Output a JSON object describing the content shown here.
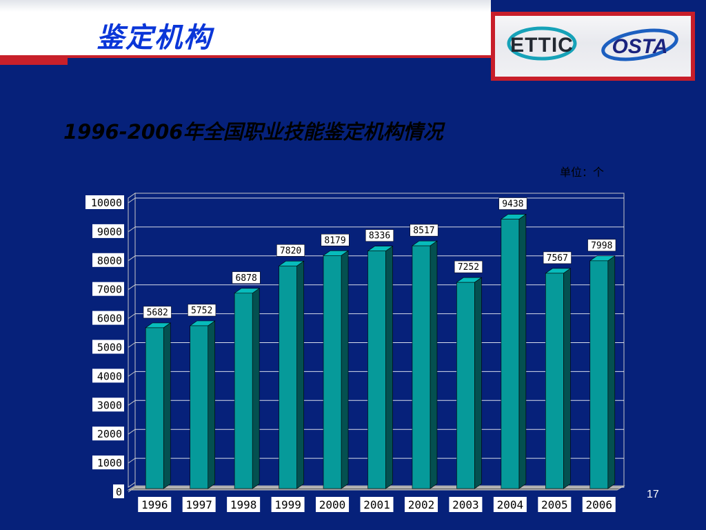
{
  "slide": {
    "title": "鉴定机构",
    "page_number": "17"
  },
  "logos": {
    "left": "ETTIC",
    "right": "OSTA"
  },
  "chart_data": {
    "type": "bar",
    "title": "1996-2006年全国职业技能鉴定机构情况",
    "unit_label": "单位：个",
    "categories": [
      "1996",
      "1997",
      "1998",
      "1999",
      "2000",
      "2001",
      "2002",
      "2003",
      "2004",
      "2005",
      "2006"
    ],
    "values": [
      5682,
      5752,
      6878,
      7820,
      8179,
      8336,
      8517,
      7252,
      9438,
      7567,
      7998
    ],
    "ylim": [
      0,
      10000
    ],
    "yticks": [
      0,
      1000,
      2000,
      3000,
      4000,
      5000,
      6000,
      7000,
      8000,
      9000,
      10000
    ],
    "grid": true,
    "legend": "none",
    "colors": {
      "bar_front": "#069a9a",
      "bar_side": "#045050",
      "bar_top": "#07bcbc",
      "grid": "#ffffff"
    }
  }
}
